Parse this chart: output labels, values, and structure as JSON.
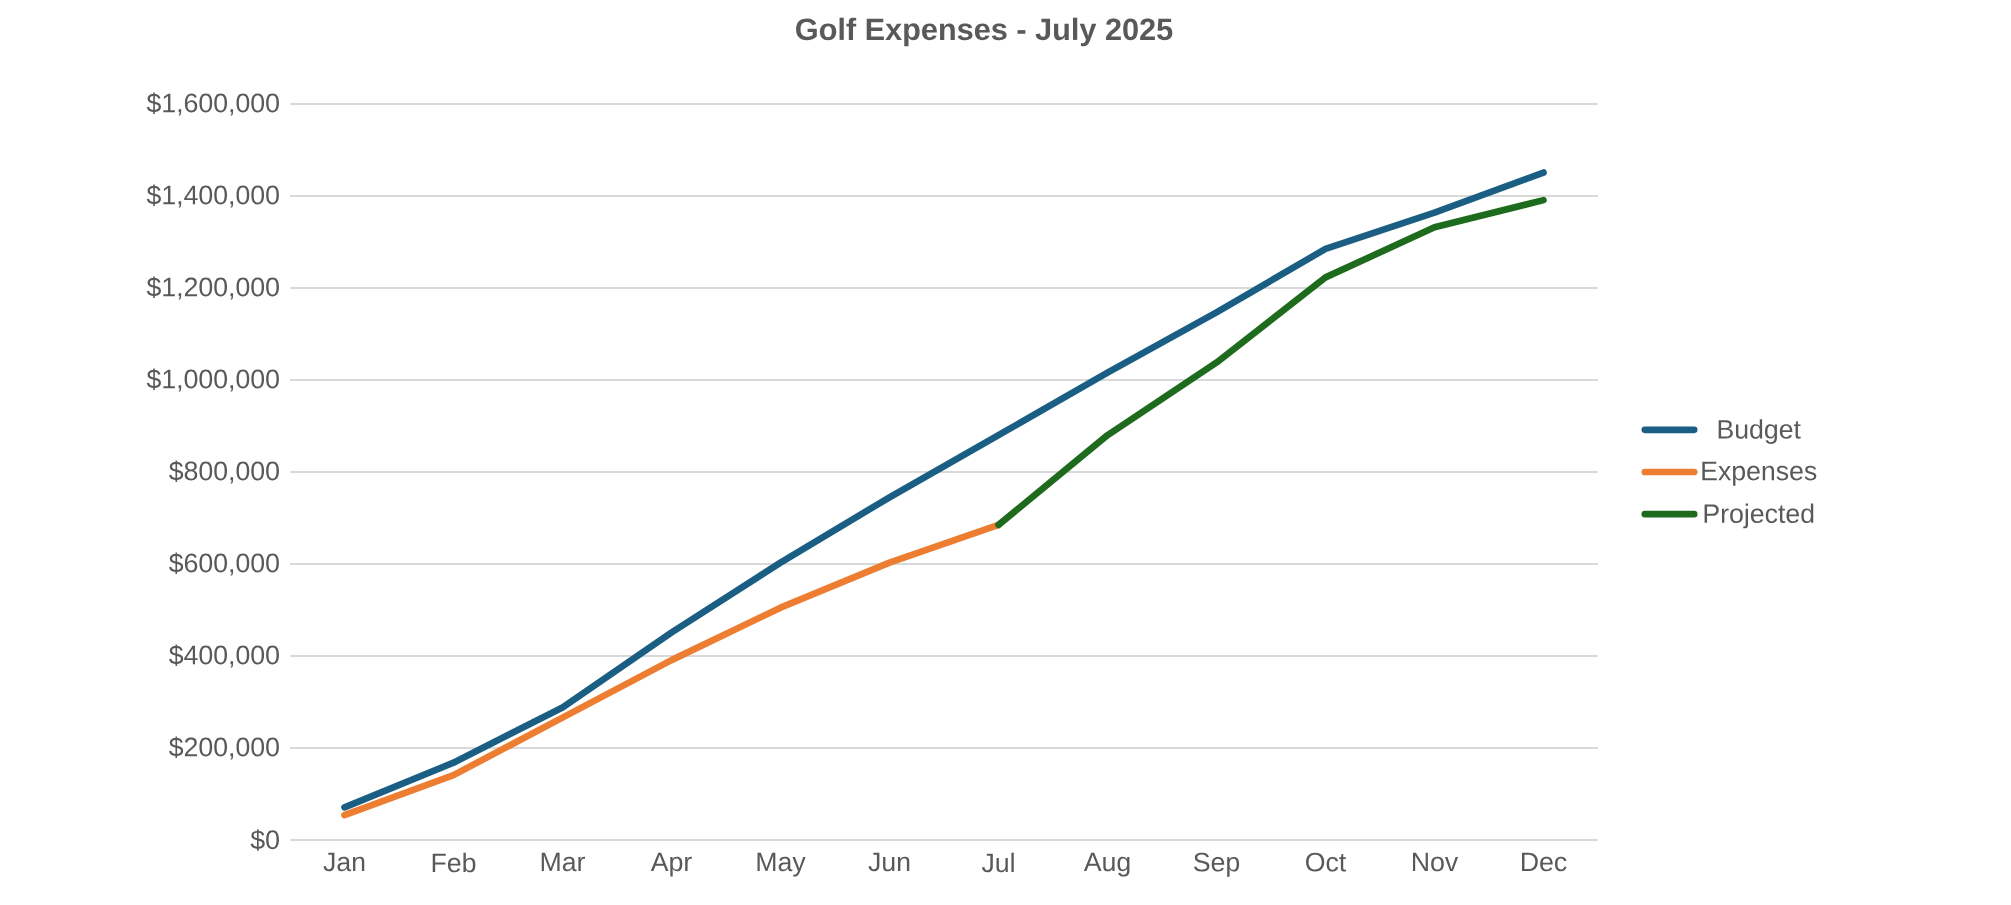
{
  "chart_data": {
    "type": "line",
    "title": "Golf  Expenses - July 2025",
    "categories": [
      "Jan",
      "Feb",
      "Mar",
      "Apr",
      "May",
      "Jun",
      "Jul",
      "Aug",
      "Sep",
      "Oct",
      "Nov",
      "Dec"
    ],
    "series": [
      {
        "name": "Budget",
        "color": "#1b5e84",
        "values": [
          71000,
          168000,
          288000,
          451000,
          603000,
          745000,
          880000,
          1016000,
          1147000,
          1285000,
          1364000,
          1451000
        ]
      },
      {
        "name": "Expenses",
        "color": "#ed7d31",
        "values": [
          54000,
          141000,
          266000,
          391000,
          505000,
          603000,
          685000,
          null,
          null,
          null,
          null,
          null
        ]
      },
      {
        "name": "Projected",
        "color": "#1e6b1e",
        "values": [
          null,
          null,
          null,
          null,
          null,
          null,
          685000,
          880000,
          1038000,
          1223000,
          1332000,
          1391000
        ]
      }
    ],
    "ylim": [
      0,
      1600000
    ],
    "yticks": [
      {
        "value": 0,
        "label": "$0"
      },
      {
        "value": 200000,
        "label": "$200,000"
      },
      {
        "value": 400000,
        "label": "$400,000"
      },
      {
        "value": 600000,
        "label": "$600,000"
      },
      {
        "value": 800000,
        "label": "$800,000"
      },
      {
        "value": 1000000,
        "label": "$1,000,000"
      },
      {
        "value": 1200000,
        "label": "$1,200,000"
      },
      {
        "value": 1400000,
        "label": "$1,400,000"
      },
      {
        "value": 1600000,
        "label": "$1,600,000"
      }
    ],
    "grid": "y",
    "legend": "right",
    "marker": "none",
    "line_style": "solid"
  }
}
